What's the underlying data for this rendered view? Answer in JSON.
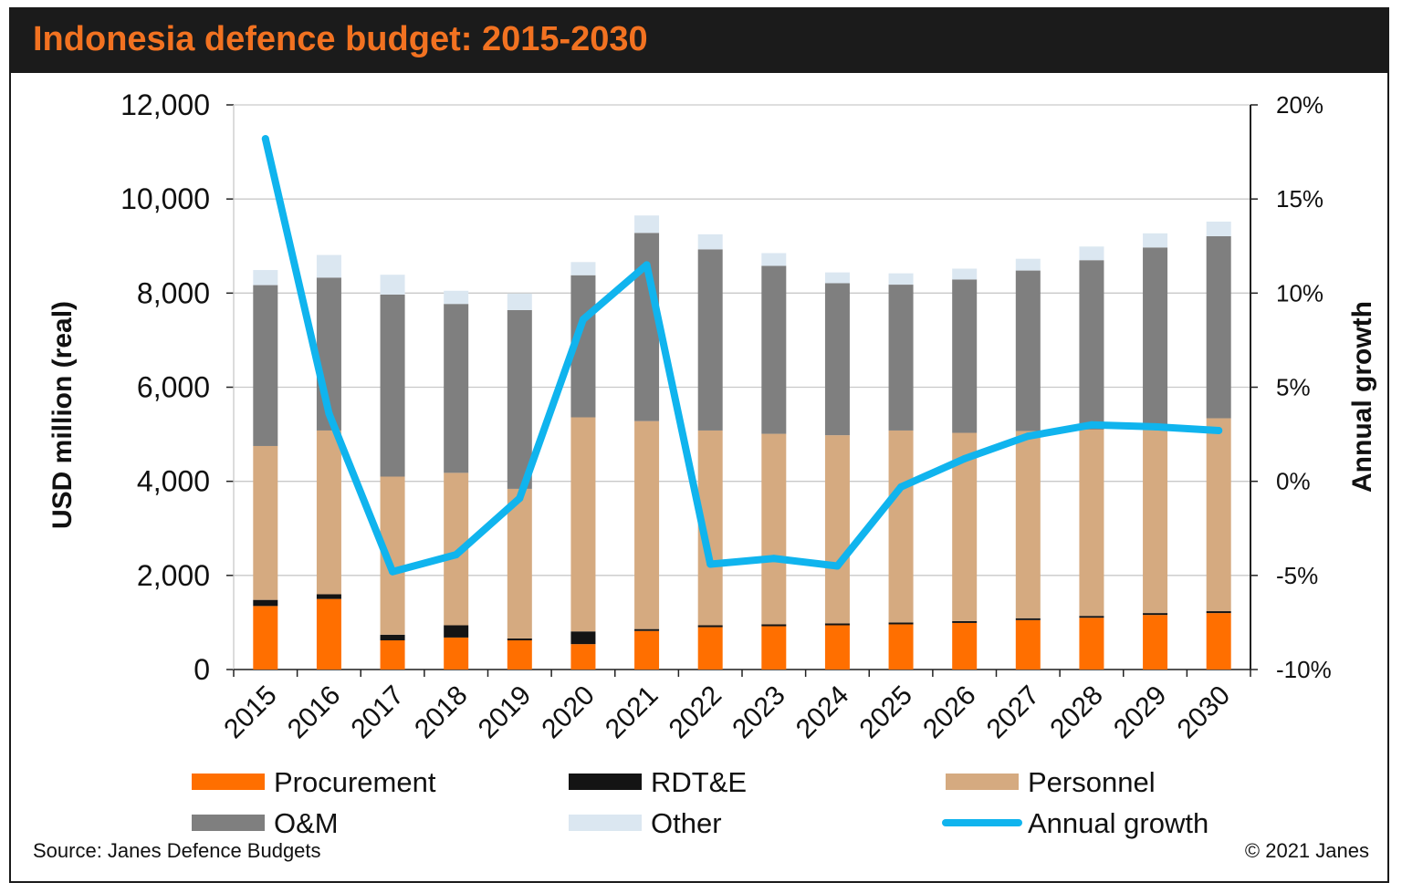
{
  "title": "Indonesia defence budget: 2015-2030",
  "source": "Source: Janes Defence Budgets",
  "copyright": "© 2021 Janes",
  "colors": {
    "title": "#f27221",
    "procurement": "#ff6f00",
    "rdte": "#141414",
    "personnel": "#d5aa80",
    "om": "#7f7f7f",
    "other": "#dbe7f1",
    "growth": "#10b4ee"
  },
  "chart_data": {
    "type": "bar",
    "stacked": true,
    "title": "Indonesia defence budget: 2015-2030",
    "categories": [
      "2015",
      "2016",
      "2017",
      "2018",
      "2019",
      "2020",
      "2021",
      "2022",
      "2023",
      "2024",
      "2025",
      "2026",
      "2027",
      "2028",
      "2029",
      "2030"
    ],
    "ylabel": "USD million (real)",
    "ylabel2": "Annual growth",
    "ylim": [
      0,
      12000
    ],
    "yticks": [
      "0",
      "2,000",
      "4,000",
      "6,000",
      "8,000",
      "10,000",
      "12,000"
    ],
    "ylim2": [
      -10,
      20
    ],
    "yticks2": [
      "-10%",
      "-5%",
      "0%",
      "5%",
      "10%",
      "15%",
      "20%"
    ],
    "series": [
      {
        "name": "Procurement",
        "values": [
          1350,
          1500,
          620,
          680,
          620,
          540,
          820,
          900,
          920,
          940,
          960,
          990,
          1050,
          1100,
          1160,
          1200
        ]
      },
      {
        "name": "RDT&E",
        "values": [
          130,
          100,
          120,
          260,
          40,
          270,
          40,
          40,
          40,
          40,
          40,
          40,
          40,
          40,
          40,
          40
        ]
      },
      {
        "name": "Personnel",
        "values": [
          3270,
          3480,
          3360,
          3240,
          3180,
          4550,
          4420,
          4140,
          4050,
          4000,
          4080,
          4000,
          3980,
          3960,
          3940,
          4100
        ]
      },
      {
        "name": "O&M",
        "values": [
          3420,
          3250,
          3870,
          3590,
          3800,
          3020,
          4000,
          3850,
          3570,
          3230,
          3100,
          3260,
          3410,
          3600,
          3830,
          3870
        ]
      },
      {
        "name": "Other",
        "values": [
          320,
          480,
          420,
          280,
          350,
          280,
          370,
          320,
          270,
          230,
          240,
          230,
          250,
          290,
          300,
          310
        ]
      }
    ],
    "line_series": {
      "name": "Annual growth",
      "axis": "secondary",
      "values": [
        18.2,
        3.6,
        -4.8,
        -3.9,
        -0.9,
        8.6,
        11.5,
        -4.4,
        -4.1,
        -4.5,
        -0.3,
        1.2,
        2.4,
        3.0,
        2.9,
        2.7
      ]
    },
    "legend": [
      "Procurement",
      "RDT&E",
      "Personnel",
      "O&M",
      "Other",
      "Annual growth"
    ],
    "legend_position": "bottom",
    "grid": true
  }
}
